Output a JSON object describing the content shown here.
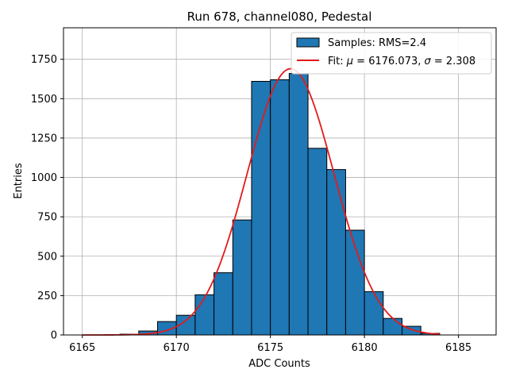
{
  "chart_data": {
    "type": "histogram",
    "title": "Run 678, channel080, Pedestal",
    "xlabel": "ADC Counts",
    "ylabel": "Entries",
    "xlim": [
      6164.0,
      6187.0
    ],
    "ylim": [
      0,
      1950
    ],
    "xticks": [
      6165,
      6170,
      6175,
      6180,
      6185
    ],
    "yticks": [
      0,
      250,
      500,
      750,
      1000,
      1250,
      1500,
      1750
    ],
    "grid": true,
    "legend_position": "top-right",
    "bin_width": 1,
    "bins": [
      {
        "left": 6167,
        "value": 5
      },
      {
        "left": 6168,
        "value": 25
      },
      {
        "left": 6169,
        "value": 85
      },
      {
        "left": 6170,
        "value": 125
      },
      {
        "left": 6171,
        "value": 255
      },
      {
        "left": 6172,
        "value": 395
      },
      {
        "left": 6173,
        "value": 730
      },
      {
        "left": 6174,
        "value": 1610
      },
      {
        "left": 6175,
        "value": 1620
      },
      {
        "left": 6176,
        "value": 1660
      },
      {
        "left": 6177,
        "value": 1185
      },
      {
        "left": 6178,
        "value": 1050
      },
      {
        "left": 6179,
        "value": 665
      },
      {
        "left": 6180,
        "value": 275
      },
      {
        "left": 6181,
        "value": 105
      },
      {
        "left": 6182,
        "value": 55
      },
      {
        "left": 6183,
        "value": 10
      }
    ],
    "fit": {
      "mu": 6176.073,
      "sigma": 2.308,
      "amplitude": 1690,
      "x_range": [
        6165,
        6184
      ]
    },
    "legend": [
      {
        "label": "Samples: RMS=2.4",
        "kind": "patch"
      },
      {
        "label_prefix": "Fit: ",
        "mu_symbol": "μ",
        "mu_text": " = 6176.073, ",
        "sigma_symbol": "σ",
        "sigma_text": " = 2.308",
        "kind": "line"
      }
    ],
    "colors": {
      "bar_fill": "#1f77b4",
      "bar_edge": "#000000",
      "fit_line": "#e41a1c",
      "grid": "#b0b0b0"
    }
  }
}
